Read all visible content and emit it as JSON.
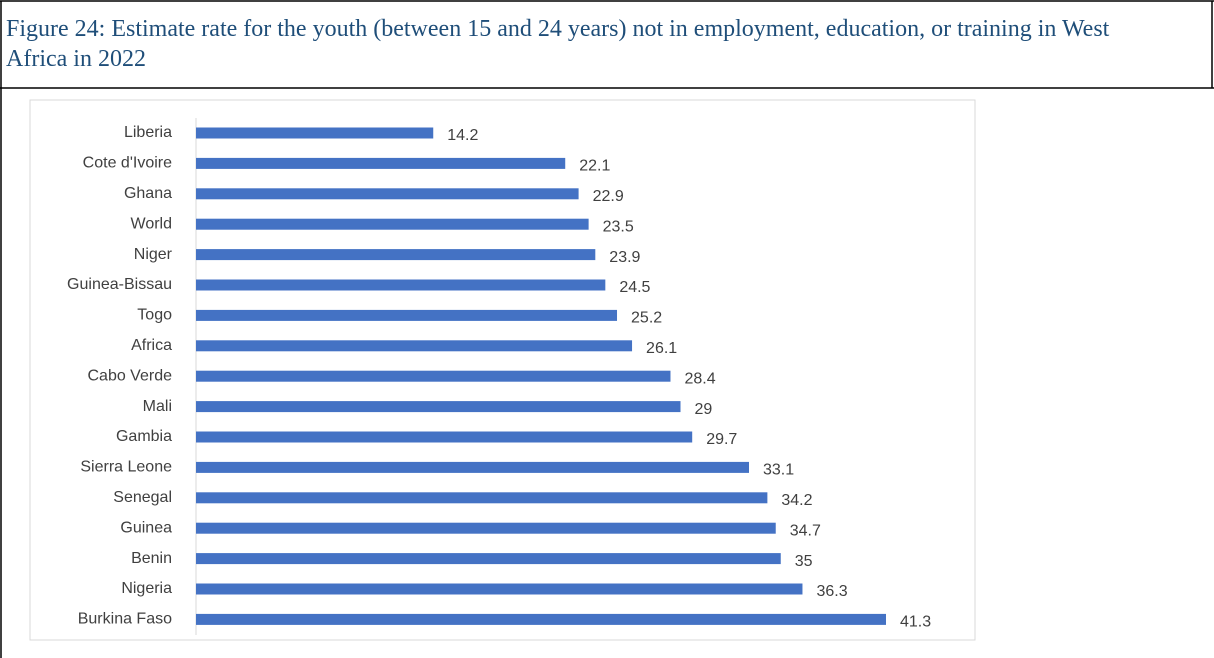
{
  "chart_data": {
    "type": "bar",
    "orientation": "horizontal",
    "title": "Figure 24: Estimate rate for the youth (between 15 and 24 years) not in employment, education, or training in West Africa in 2022",
    "categories": [
      "Liberia",
      "Cote d'Ivoire",
      "Ghana",
      "World",
      "Niger",
      "Guinea-Bissau",
      "Togo",
      "Africa",
      "Cabo Verde",
      "Mali",
      "Gambia",
      "Sierra Leone",
      "Senegal",
      "Guinea",
      "Benin",
      "Nigeria",
      "Burkina Faso"
    ],
    "values": [
      14.2,
      22.1,
      22.9,
      23.5,
      23.9,
      24.5,
      25.2,
      26.1,
      28.4,
      29,
      29.7,
      33.1,
      34.2,
      34.7,
      35,
      36.3,
      41.3
    ],
    "color": "#4472c4"
  }
}
